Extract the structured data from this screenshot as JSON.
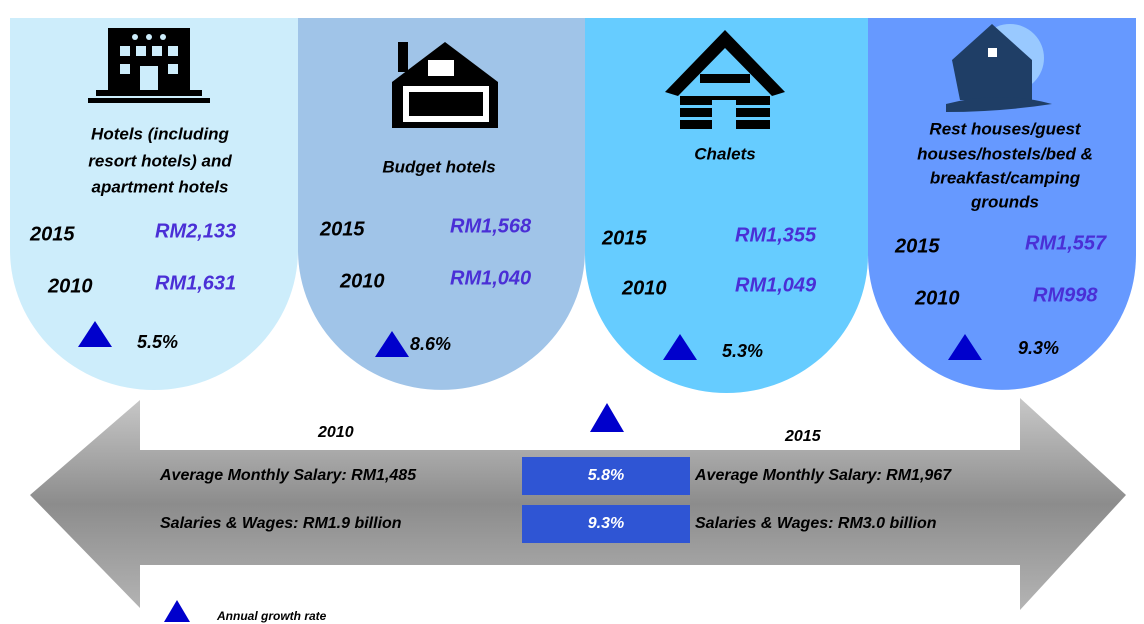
{
  "cards": [
    {
      "title": [
        "Hotels (including",
        "resort hotels) and",
        "apartment hotels"
      ],
      "rows": [
        {
          "year": "2015",
          "value": "RM2,133"
        },
        {
          "year": "2010",
          "value": "RM1,631"
        }
      ],
      "growth": "5.5%"
    },
    {
      "title": [
        "Budget hotels"
      ],
      "rows": [
        {
          "year": "2015",
          "value": "RM1,568"
        },
        {
          "year": "2010",
          "value": "RM1,040"
        }
      ],
      "growth": "8.6%"
    },
    {
      "title": [
        "Chalets"
      ],
      "rows": [
        {
          "year": "2015",
          "value": "RM1,355"
        },
        {
          "year": "2010",
          "value": "RM1,049"
        }
      ],
      "growth": "5.3%"
    },
    {
      "title": [
        "Rest houses/guest",
        "houses/hostels/bed &",
        "breakfast/camping",
        "grounds"
      ],
      "rows": [
        {
          "year": "2015",
          "value": "RM1,557"
        },
        {
          "year": "2010",
          "value": "RM998"
        }
      ],
      "growth": "9.3%"
    }
  ],
  "summary": {
    "left_year": "2010",
    "right_year": "2015",
    "rows": [
      {
        "left": "Average Monthly Salary: RM1,485",
        "growth": "5.8%",
        "right": "Average Monthly Salary: RM1,967"
      },
      {
        "left": "Salaries & Wages: RM1.9 billion",
        "growth": "9.3%",
        "right": "Salaries & Wages: RM3.0 billion"
      }
    ]
  },
  "legend": "Annual growth rate"
}
